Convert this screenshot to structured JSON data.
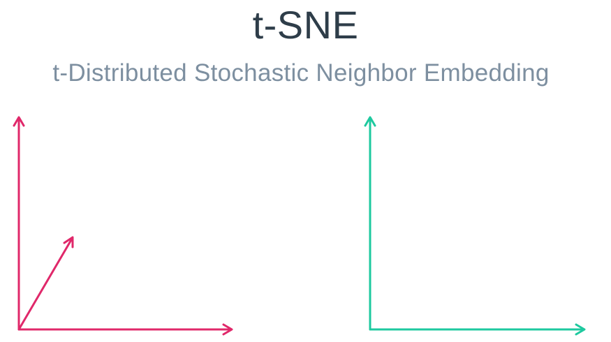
{
  "slide": {
    "title": "t-SNE",
    "subtitle": "t-Distributed Stochastic Neighbor Embedding"
  },
  "diagrams": [
    {
      "name": "high-dimensional-axes",
      "color": "#e0286a",
      "axes": [
        "x-axis",
        "y-axis",
        "z-axis"
      ]
    },
    {
      "name": "low-dimensional-axes",
      "color": "#1ec99f",
      "axes": [
        "x-axis",
        "y-axis"
      ]
    }
  ]
}
